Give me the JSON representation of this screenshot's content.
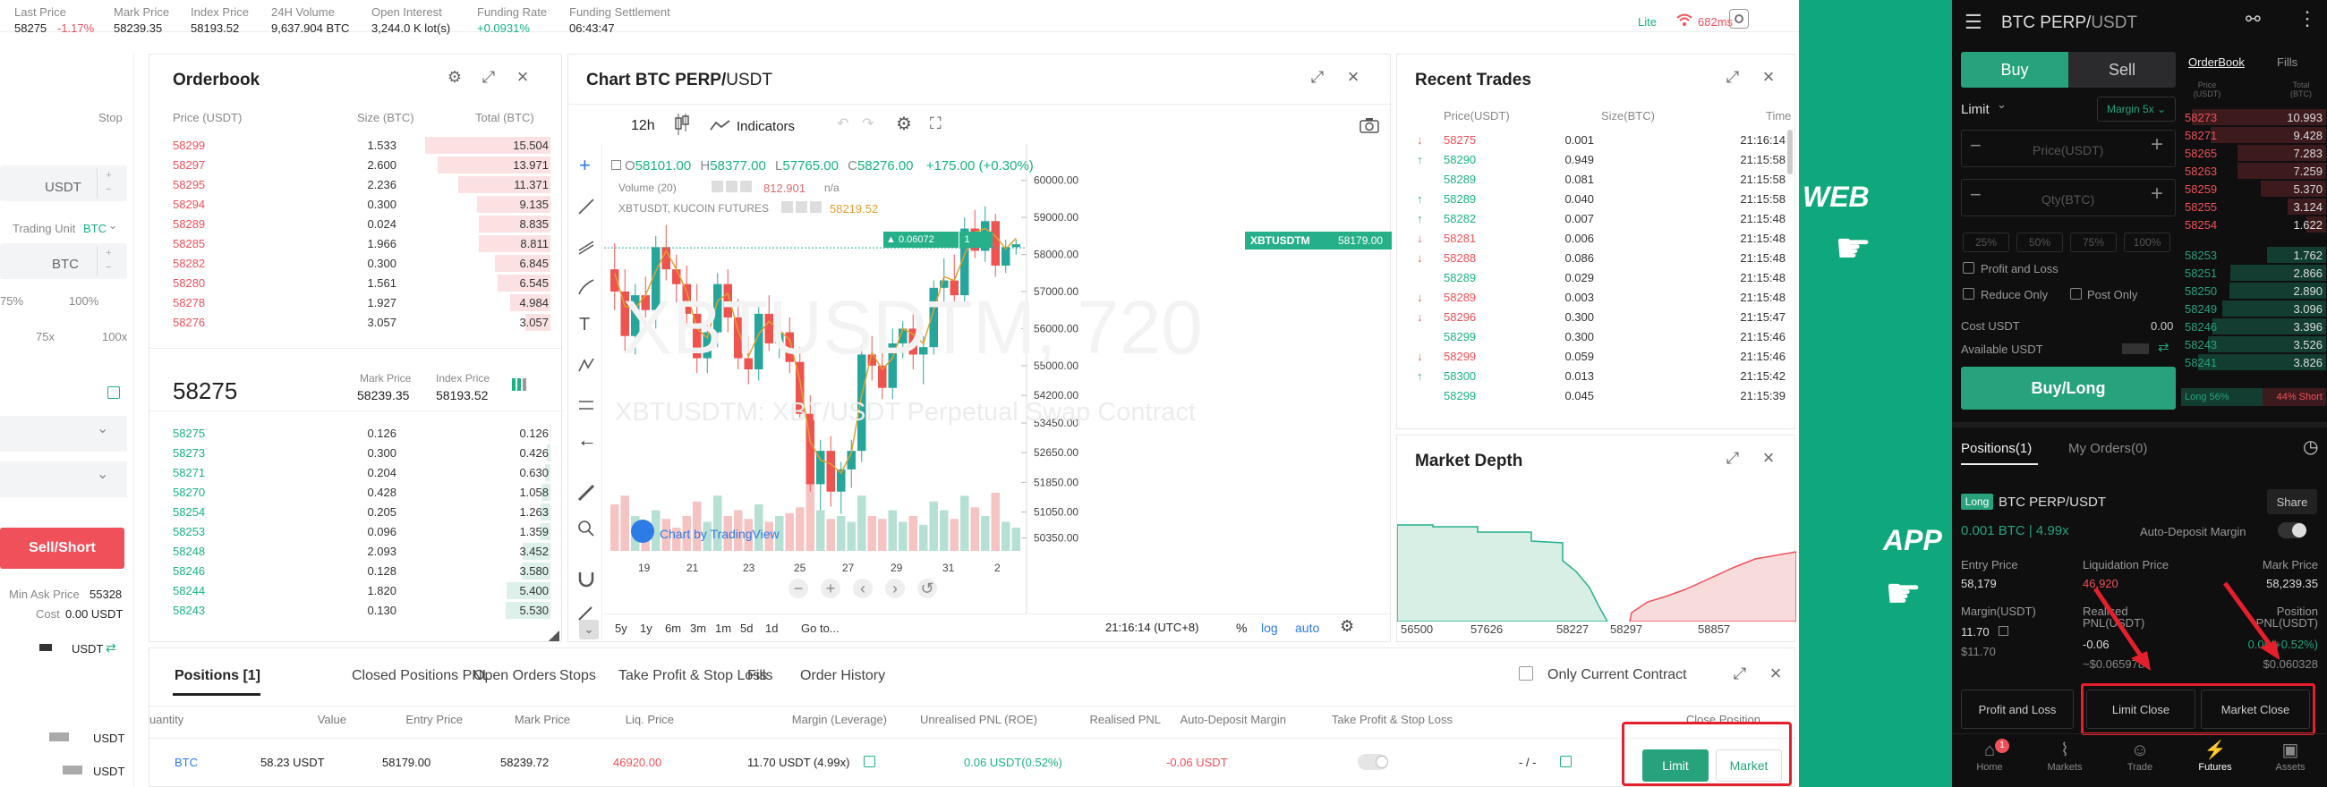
{
  "top_stats": [
    {
      "label": "Last Price",
      "value": "58275",
      "extra": "-1.17%"
    },
    {
      "label": "Mark Price",
      "value": "58239.35"
    },
    {
      "label": "Index Price",
      "value": "58193.52"
    },
    {
      "label": "24H Volume",
      "value": "9,637.904 BTC"
    },
    {
      "label": "Open Interest",
      "value": "3,244.0 K lot(s)"
    },
    {
      "label": "Funding Rate",
      "value": "+0.0931%"
    },
    {
      "label": "Funding Settlement",
      "value": "06:43:47"
    }
  ],
  "top_right": {
    "lite": "Lite",
    "ping": "682ms"
  },
  "left_panel": {
    "stop": "Stop",
    "usdt": "USDT",
    "trading_unit": "Trading Unit",
    "trading_unit_val": "BTC",
    "btc": "BTC",
    "p75": "75%",
    "p100": "100%",
    "x75": "75x",
    "x100": "100x",
    "sell_short": "Sell/Short",
    "min_ask_label": "Min Ask Price",
    "min_ask_val": "55328",
    "cost_label": "Cost",
    "cost_val": "0.00 USDT",
    "usdt_transfer": "USDT",
    "b1": "USDT",
    "b2": "USDT"
  },
  "orderbook": {
    "title": "Orderbook",
    "col_price": "Price (USDT)",
    "col_size": "Size (BTC)",
    "col_total": "Total (BTC)",
    "asks": [
      [
        "58299",
        "1.533",
        "15.504"
      ],
      [
        "58297",
        "2.600",
        "13.971"
      ],
      [
        "58295",
        "2.236",
        "11.371"
      ],
      [
        "58294",
        "0.300",
        "9.135"
      ],
      [
        "58289",
        "0.024",
        "8.835"
      ],
      [
        "58285",
        "1.966",
        "8.811"
      ],
      [
        "58282",
        "0.300",
        "6.845"
      ],
      [
        "58280",
        "1.561",
        "6.545"
      ],
      [
        "58278",
        "1.927",
        "4.984"
      ],
      [
        "58276",
        "3.057",
        "3.057"
      ]
    ],
    "mid_price": "58275",
    "mark_label": "Mark Price",
    "mark_val": "58239.35",
    "index_label": "Index Price",
    "index_val": "58193.52",
    "bids": [
      [
        "58275",
        "0.126",
        "0.126"
      ],
      [
        "58273",
        "0.300",
        "0.426"
      ],
      [
        "58271",
        "0.204",
        "0.630"
      ],
      [
        "58270",
        "0.428",
        "1.058"
      ],
      [
        "58254",
        "0.205",
        "1.263"
      ],
      [
        "58253",
        "0.096",
        "1.359"
      ],
      [
        "58248",
        "2.093",
        "3.452"
      ],
      [
        "58246",
        "0.128",
        "3.580"
      ],
      [
        "58244",
        "1.820",
        "5.400"
      ],
      [
        "58243",
        "0.130",
        "5.530"
      ]
    ]
  },
  "chart": {
    "title_prefix": "Chart BTC PERP/",
    "title_quote": "USDT",
    "interval": "12h",
    "indicators": "Indicators",
    "ohlc": {
      "o": "58101.00",
      "h": "58377.00",
      "l": "57765.00",
      "c": "58276.00",
      "chg": "+175.00 (+0.30%)"
    },
    "volume_label": "Volume (20)",
    "volume_val": "812.901",
    "volume_na": "n/a",
    "symbol_line": "XBTUSDT, KUCOIN FUTURES",
    "symbol_val": "58219.52",
    "watermark_big": "XBTUSDTM, 720",
    "watermark_small": "XBTUSDTM: XBT/USDT Perpetual Swap Contract",
    "buy_tag": "0.06072",
    "price_tag_label": "XBTUSDTM",
    "price_tag_val": "58179.00",
    "tv_credit": "Chart by TradingView",
    "y_ticks": [
      "60000.00",
      "59000.00",
      "58000.00",
      "57000.00",
      "56000.00",
      "55000.00",
      "54200.00",
      "53450.00",
      "52650.00",
      "51850.00",
      "51050.00",
      "50350.00"
    ],
    "x_ticks": [
      "19",
      "21",
      "23",
      "25",
      "27",
      "29",
      "31",
      "2"
    ],
    "ranges": [
      "5y",
      "1y",
      "6m",
      "3m",
      "1m",
      "5d",
      "1d",
      "Go to..."
    ],
    "time": "21:16:14 (UTC+8)",
    "pct": "%",
    "log": "log",
    "auto": "auto"
  },
  "recent_trades": {
    "title": "Recent Trades",
    "col_price": "Price(USDT)",
    "col_size": "Size(BTC)",
    "col_time": "Time",
    "rows": [
      [
        "down",
        "58275",
        "0.001",
        "21:16:14"
      ],
      [
        "up",
        "58290",
        "0.949",
        "21:15:58"
      ],
      [
        "none",
        "58289",
        "0.081",
        "21:15:58"
      ],
      [
        "up",
        "58289",
        "0.040",
        "21:15:58"
      ],
      [
        "up",
        "58282",
        "0.007",
        "21:15:48"
      ],
      [
        "down",
        "58281",
        "0.006",
        "21:15:48"
      ],
      [
        "down",
        "58288",
        "0.086",
        "21:15:48"
      ],
      [
        "none",
        "58289",
        "0.029",
        "21:15:48"
      ],
      [
        "down",
        "58289",
        "0.003",
        "21:15:48"
      ],
      [
        "down",
        "58296",
        "0.300",
        "21:15:47"
      ],
      [
        "none",
        "58299",
        "0.300",
        "21:15:46"
      ],
      [
        "down",
        "58299",
        "0.059",
        "21:15:46"
      ],
      [
        "up",
        "58300",
        "0.013",
        "21:15:42"
      ],
      [
        "none",
        "58299",
        "0.045",
        "21:15:39"
      ]
    ]
  },
  "market_depth": {
    "title": "Market Depth",
    "x_labels": [
      "56500",
      "57626",
      "58227",
      "58297",
      "58857"
    ]
  },
  "positions": {
    "tabs": [
      "Positions [1]",
      "Closed Positions PNL",
      "Open Orders",
      "Stops",
      "Take Profit & Stop Loss",
      "Fills",
      "Order History"
    ],
    "only_current": "Only Current Contract",
    "headers": [
      "uantity",
      "Value",
      "Entry Price",
      "Mark Price",
      "Liq. Price",
      "Margin (Leverage)",
      "Unrealised PNL (ROE)",
      "Realised PNL",
      "Auto-Deposit Margin",
      "Take Profit & Stop Loss",
      "Close Position"
    ],
    "row": {
      "qty": "BTC",
      "value": "58.23 USDT",
      "entry": "58179.00",
      "mark": "58239.72",
      "liq": "46920.00",
      "margin": "11.70 USDT  (4.99x)",
      "upnl": "0.06 USDT(0.52%)",
      "rpnl": "-0.06 USDT",
      "tpsl": "- / -"
    },
    "limit_btn": "Limit",
    "market_btn": "Market"
  },
  "labels": {
    "web": "WEB",
    "app": "APP"
  },
  "app": {
    "title_prefix": "BTC PERP/",
    "title_quote": "USDT",
    "buy": "Buy",
    "sell": "Sell",
    "orderbook_tab": "OrderBook",
    "fills_tab": "Fills",
    "ob_col_price": "Price (USDT)",
    "ob_col_total": "Total (BTC)",
    "limit": "Limit",
    "margin": "Margin 5x",
    "price_ph": "Price(USDT)",
    "qty_ph": "Qty(BTC)",
    "pcts": [
      "25%",
      "50%",
      "75%",
      "100%"
    ],
    "profit_loss_cb": "Profit and Loss",
    "reduce_only": "Reduce Only",
    "post_only": "Post Only",
    "cost_label": "Cost USDT",
    "cost_val": "0.00",
    "avail_label": "Available USDT",
    "buy_long": "Buy/Long",
    "long_ratio": "Long 56%",
    "short_ratio": "44% Short",
    "asks": [
      [
        "58273",
        "10.993"
      ],
      [
        "58271",
        "9.428"
      ],
      [
        "58265",
        "7.283"
      ],
      [
        "58263",
        "7.259"
      ],
      [
        "58259",
        "5.370"
      ],
      [
        "58255",
        "3.124"
      ],
      [
        "58254",
        "1.622"
      ]
    ],
    "bids": [
      [
        "58253",
        "1.762"
      ],
      [
        "58251",
        "2.866"
      ],
      [
        "58250",
        "2.890"
      ],
      [
        "58249",
        "3.096"
      ],
      [
        "58246",
        "3.396"
      ],
      [
        "58243",
        "3.526"
      ],
      [
        "58241",
        "3.826"
      ]
    ],
    "positions_tab": "Positions(1)",
    "orders_tab": "My Orders(0)",
    "long_badge": "Long",
    "pos_symbol": "BTC PERP/USDT",
    "share": "Share",
    "pos_size": "0.001 BTC | 4.99x",
    "auto_deposit": "Auto-Deposit Margin",
    "entry_label": "Entry Price",
    "entry_val": "58,179",
    "liq_label": "Liquidation Price",
    "liq_val": "46,920",
    "mark_label": "Mark Price",
    "mark_val": "58,239.35",
    "margin_label": "Margin(USDT)",
    "margin_val": "11.70",
    "margin_sub": "$11.70",
    "rpnl_label": "Realised PNL(USDT)",
    "rpnl_val": "-0.06",
    "rpnl_sub": "~$0.065978",
    "upnl_label": "Position PNL(USDT)",
    "upnl_val": "0.06(+0.52%)",
    "upnl_sub": "$0.060328",
    "btn_pl": "Profit and Loss",
    "btn_limit_close": "Limit Close",
    "btn_market_close": "Market Close",
    "nav": [
      "Home",
      "Markets",
      "Trade",
      "Futures",
      "Assets"
    ],
    "nav_badge": "1"
  }
}
